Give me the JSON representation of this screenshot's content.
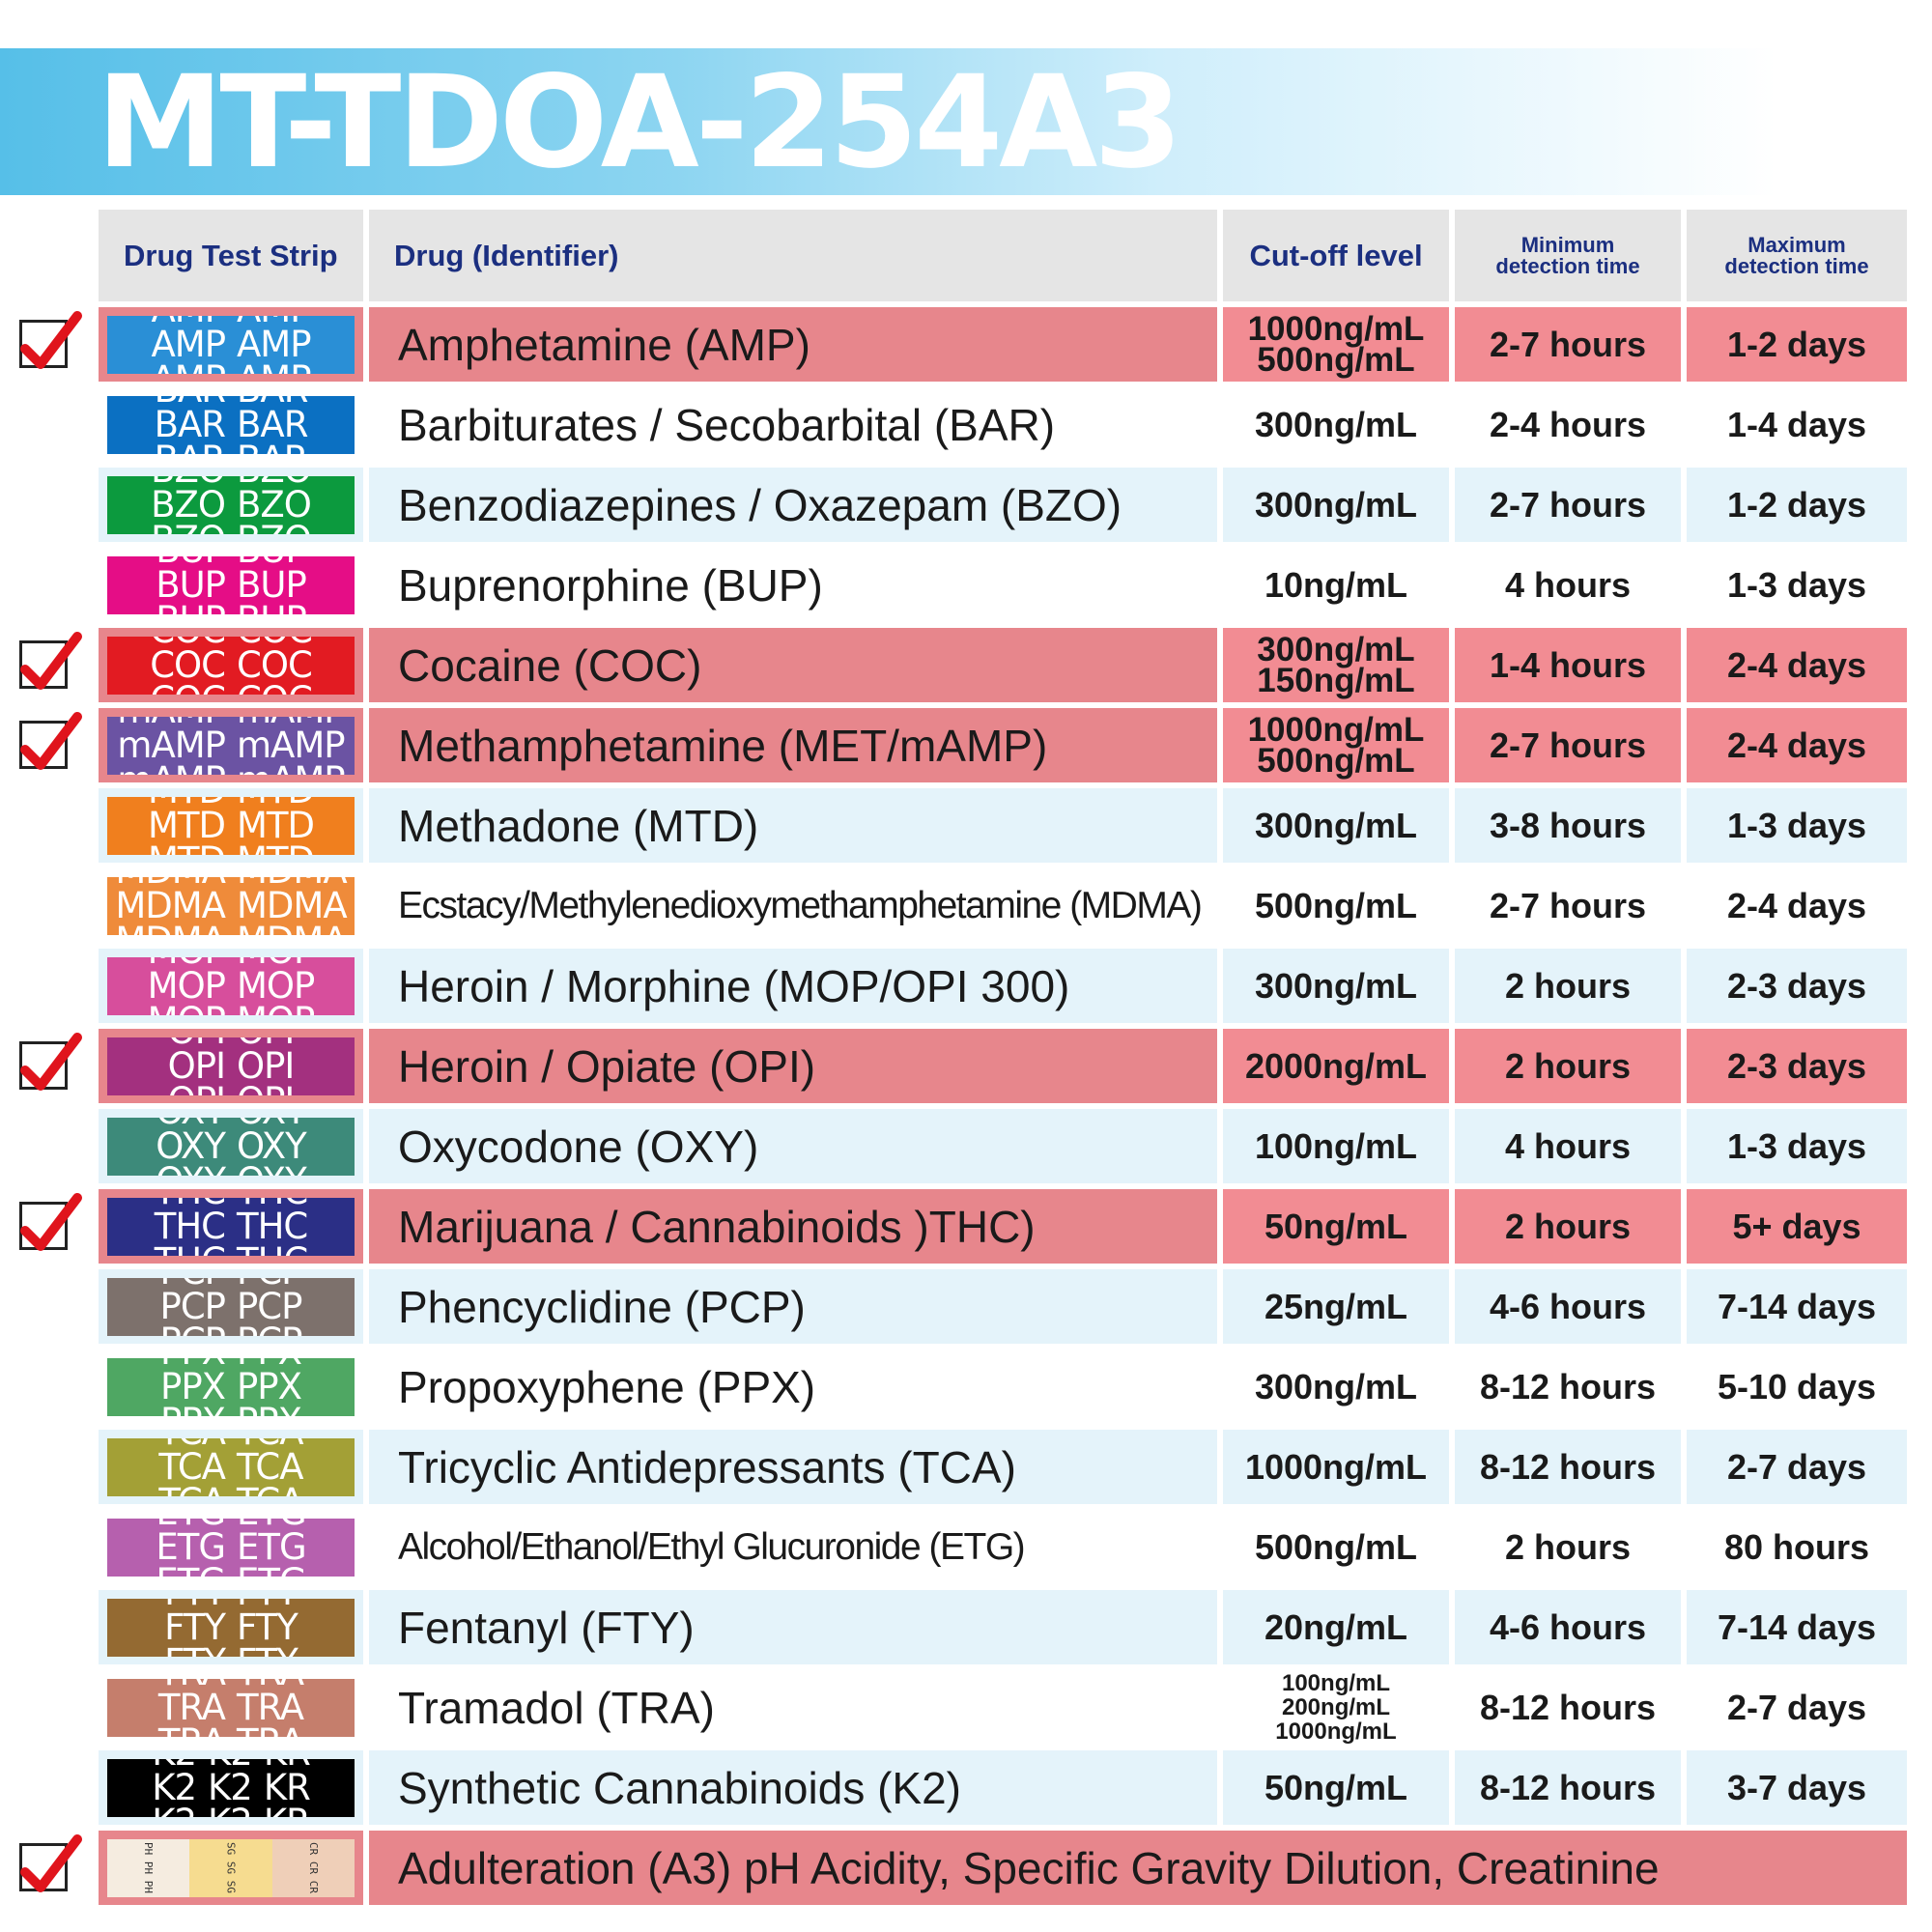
{
  "title": "MT-TDOA-254A3",
  "headers": {
    "strip": "Drug Test Strip",
    "drug": "Drug (Identifier)",
    "cutoff": "Cut-off level",
    "min_line1": "Minimum",
    "min_line2": "detection time",
    "max_line1": "Maximum",
    "max_line2": "detection time"
  },
  "rows": [
    {
      "strip": "AMP",
      "color": "#2a8fd6",
      "drug": "Amphetamine (AMP)",
      "cutoff": [
        "1000ng/mL",
        "500ng/mL"
      ],
      "min": "2-7 hours",
      "max": "1-2 days",
      "checked": true
    },
    {
      "strip": "BAR",
      "color": "#0b70c2",
      "drug": "Barbiturates / Secobarbital (BAR)",
      "cutoff": [
        "300ng/mL"
      ],
      "min": "2-4 hours",
      "max": "1-4 days",
      "checked": false
    },
    {
      "strip": "BZO",
      "color": "#0c9a3e",
      "drug": "Benzodiazepines / Oxazepam (BZO)",
      "cutoff": [
        "300ng/mL"
      ],
      "min": "2-7 hours",
      "max": "1-2 days",
      "checked": false
    },
    {
      "strip": "BUP",
      "color": "#e50d86",
      "drug": "Buprenorphine (BUP)",
      "cutoff": [
        "10ng/mL"
      ],
      "min": "4 hours",
      "max": "1-3 days",
      "checked": false
    },
    {
      "strip": "COC",
      "color": "#e21b22",
      "drug": "Cocaine (COC)",
      "cutoff": [
        "300ng/mL",
        "150ng/mL"
      ],
      "min": "1-4 hours",
      "max": "2-4 days",
      "checked": true
    },
    {
      "strip": "mAMP",
      "color": "#6b53a3",
      "drug": "Methamphetamine (MET/mAMP)",
      "cutoff": [
        "1000ng/mL",
        "500ng/mL"
      ],
      "min": "2-7 hours",
      "max": "2-4 days",
      "checked": true
    },
    {
      "strip": "MTD",
      "color": "#f07f1e",
      "drug": "Methadone (MTD)",
      "cutoff": [
        "300ng/mL"
      ],
      "min": "3-8 hours",
      "max": "1-3 days",
      "checked": false
    },
    {
      "strip": "MDMA",
      "color": "#ef8b3a",
      "drug": "Ecstacy/Methylenedioxymethamphetamine (MDMA)",
      "cutoff": [
        "500ng/mL"
      ],
      "min": "2-7 hours",
      "max": "2-4 days",
      "checked": false
    },
    {
      "strip": "MOP",
      "color": "#d74e9c",
      "drug": "Heroin / Morphine (MOP/OPI 300)",
      "cutoff": [
        "300ng/mL"
      ],
      "min": "2 hours",
      "max": "2-3 days",
      "checked": false
    },
    {
      "strip": "OPI",
      "color": "#a3307f",
      "drug": "Heroin / Opiate (OPI)",
      "cutoff": [
        "2000ng/mL"
      ],
      "min": "2 hours",
      "max": "2-3 days",
      "checked": true
    },
    {
      "strip": "OXY",
      "color": "#3d8a7a",
      "drug": "Oxycodone (OXY)",
      "cutoff": [
        "100ng/mL"
      ],
      "min": "4 hours",
      "max": "1-3 days",
      "checked": false
    },
    {
      "strip": "THC",
      "color": "#2b2f86",
      "drug": "Marijuana / Cannabinoids )THC)",
      "cutoff": [
        "50ng/mL"
      ],
      "min": "2 hours",
      "max": "5+ days",
      "checked": true
    },
    {
      "strip": "PCP",
      "color": "#7d716c",
      "drug": "Phencyclidine (PCP)",
      "cutoff": [
        "25ng/mL"
      ],
      "min": "4-6 hours",
      "max": "7-14 days",
      "checked": false
    },
    {
      "strip": "PPX",
      "color": "#4fa763",
      "drug": "Propoxyphene (PPX)",
      "cutoff": [
        "300ng/mL"
      ],
      "min": "8-12 hours",
      "max": "5-10 days",
      "checked": false
    },
    {
      "strip": "TCA",
      "color": "#a3a036",
      "drug": "Tricyclic Antidepressants (TCA)",
      "cutoff": [
        "1000ng/mL"
      ],
      "min": "8-12 hours",
      "max": "2-7 days",
      "checked": false
    },
    {
      "strip": "ETG",
      "color": "#b660ae",
      "drug": "Alcohol/Ethanol/Ethyl Glucuronide (ETG)",
      "cutoff": [
        "500ng/mL"
      ],
      "min": "2 hours",
      "max": "80 hours",
      "checked": false
    },
    {
      "strip": "FTY",
      "color": "#946a32",
      "drug": "Fentanyl (FTY)",
      "cutoff": [
        "20ng/mL"
      ],
      "min": "4-6 hours",
      "max": "7-14 days",
      "checked": false
    },
    {
      "strip": "TRA",
      "color": "#c57e6c",
      "drug": "Tramadol (TRA)",
      "cutoff": [
        "100ng/mL",
        "200ng/mL",
        "1000ng/mL"
      ],
      "min": "8-12 hours",
      "max": "2-7 days",
      "checked": false
    },
    {
      "strip_words": [
        "K2",
        "K2",
        "KR"
      ],
      "color": "#000000",
      "drug": "Synthetic Cannabinoids (K2)",
      "cutoff": [
        "50ng/mL"
      ],
      "min": "8-12 hours",
      "max": "3-7 days",
      "checked": false
    }
  ],
  "adulteration": {
    "drug": "Adulteration (A3) pH Acidity, Specific Gravity Dilution, Creatinine",
    "checked": true,
    "segments": [
      {
        "text": "PH PH PH",
        "color": "#f5ece0"
      },
      {
        "text": "SG SG SG",
        "color": "#f6dc90"
      },
      {
        "text": "CR CR CR",
        "color": "#efcfb8"
      }
    ]
  }
}
